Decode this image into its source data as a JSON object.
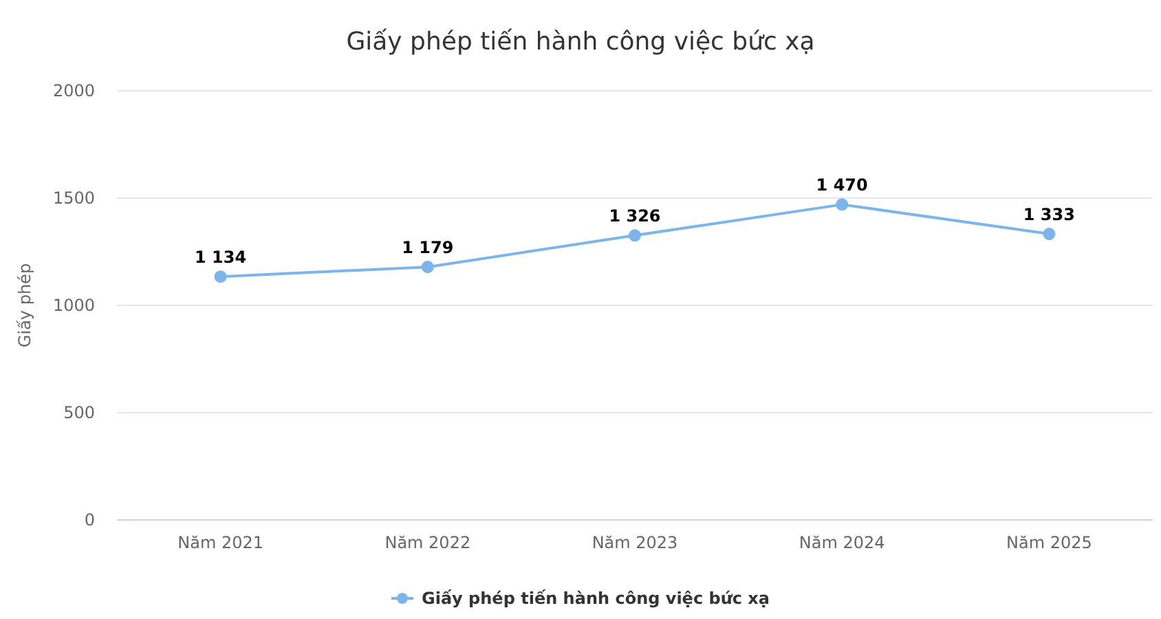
{
  "chart_data": {
    "type": "line",
    "title": "Giấy phép tiến hành công việc bức xạ",
    "ylabel": "Giấy phép",
    "categories": [
      "Năm 2021",
      "Năm 2022",
      "Năm 2023",
      "Năm 2024",
      "Năm 2025"
    ],
    "series": [
      {
        "name": "Giấy phép tiến hành công việc bức xạ",
        "color": "#7cb5ec",
        "values": [
          1134,
          1179,
          1326,
          1470,
          1333
        ],
        "value_labels": [
          "1 134",
          "1 179",
          "1 326",
          "1 470",
          "1 333"
        ]
      }
    ],
    "ylim": [
      0,
      2000
    ],
    "yticks": [
      0,
      500,
      1000,
      1500,
      2000
    ],
    "grid": "y",
    "legend": "bottom",
    "marker": "circle",
    "line_style": "solid"
  }
}
